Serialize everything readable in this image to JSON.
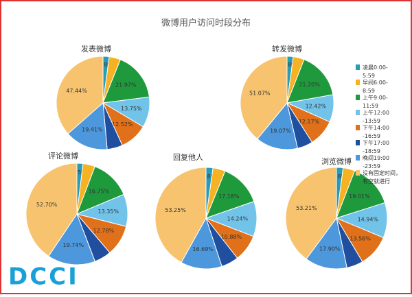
{
  "chart_data": [
    {
      "type": "pie",
      "title": "微博用户访问时段分布",
      "subtitle": "发表微博",
      "categories": [
        "凌晨0:00-5:59",
        "早间6:00-8:59",
        "上午9:00-11:59",
        "上午12:00-13:59",
        "下午14:00-16:59",
        "下午17:00-18:59",
        "晚间19:00-23:59",
        "没有固定时间，有空就进行"
      ],
      "colors": [
        "#2a9bb5",
        "#f5b324",
        "#1e9a3c",
        "#72c3ea",
        "#e0701a",
        "#1f4f9e",
        "#4d97dc",
        "#f7c36e"
      ],
      "values": [
        2.8,
        5.1,
        21.97,
        13.75,
        12.52,
        7.0,
        19.41,
        47.44
      ],
      "value_labels": [
        "2.8%",
        null,
        "21.97%",
        "13.75%",
        "12.52%",
        null,
        "19.41%",
        "47.44%"
      ]
    },
    {
      "type": "pie",
      "subtitle": "转发微博",
      "values": [
        2.8,
        5.0,
        21.2,
        12.42,
        12.17,
        7.0,
        19.07,
        51.07
      ],
      "value_labels": [
        "2.8%",
        null,
        "21.20%",
        "12.42%",
        "12.17%",
        null,
        "19.07%",
        "51.07%"
      ]
    },
    {
      "type": "pie",
      "subtitle": "评论微博",
      "values": [
        2.5,
        5.0,
        16.75,
        13.35,
        12.78,
        7.0,
        19.74,
        52.7
      ],
      "value_labels": [
        "2.5%",
        null,
        "16.75%",
        "13.35%",
        "12.78%",
        null,
        "19.74%",
        "52.70%"
      ]
    },
    {
      "type": "pie",
      "subtitle": "回复他人",
      "values": [
        2.8,
        5.0,
        17.18,
        14.24,
        10.88,
        7.0,
        16.69,
        53.25
      ],
      "value_labels": [
        "2.8%",
        null,
        "17.18%",
        "14.24%",
        "10.88%",
        null,
        "16.69%",
        "53.25%"
      ]
    },
    {
      "type": "pie",
      "subtitle": "浏览微博",
      "values": [
        2.8,
        5.0,
        19.01,
        14.94,
        13.56,
        7.0,
        17.9,
        53.21
      ],
      "value_labels": [
        "2.8%",
        null,
        "19.01%",
        "14.94%",
        "13.56%",
        null,
        "17.90%",
        "53.21%"
      ]
    }
  ],
  "logo": "DCCI"
}
